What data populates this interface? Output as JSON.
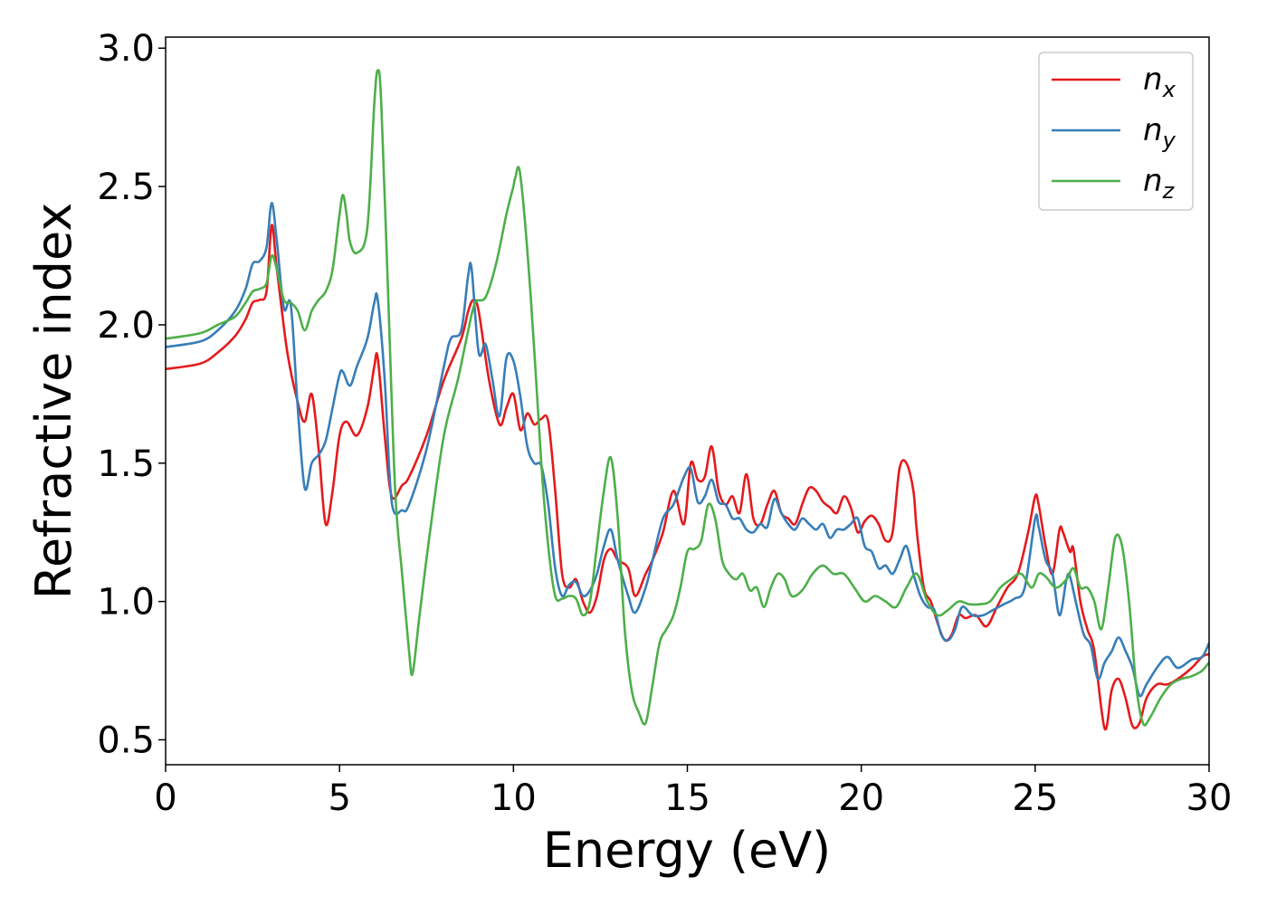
{
  "chart_data": {
    "type": "line",
    "title": "",
    "xlabel": "Energy (eV)",
    "ylabel": "Refractive index",
    "xlim": [
      0,
      30
    ],
    "ylim": [
      0.41,
      3.04
    ],
    "xticks": [
      0,
      5,
      10,
      15,
      20,
      25,
      30
    ],
    "xtick_labels": [
      "0",
      "5",
      "10",
      "15",
      "20",
      "25",
      "30"
    ],
    "yticks": [
      0.5,
      1.0,
      1.5,
      2.0,
      2.5,
      3.0
    ],
    "ytick_labels": [
      "0.5",
      "1.0",
      "1.5",
      "2.0",
      "2.5",
      "3.0"
    ],
    "grid": false,
    "legend_position": "top-right",
    "series": [
      {
        "name": "n_x",
        "label_main": "n",
        "label_sub": "x",
        "color": "#e41a1c",
        "x": [
          0,
          1,
          1.5,
          2,
          2.3,
          2.5,
          2.7,
          2.9,
          3.05,
          3.2,
          3.5,
          3.8,
          4.0,
          4.2,
          4.4,
          4.6,
          4.8,
          5.0,
          5.2,
          5.5,
          5.8,
          6.0,
          6.1,
          6.3,
          6.5,
          6.8,
          7.0,
          7.5,
          8.0,
          8.5,
          8.7,
          8.85,
          9.0,
          9.3,
          9.6,
          9.8,
          10.0,
          10.2,
          10.4,
          10.6,
          10.8,
          11.0,
          11.2,
          11.4,
          11.6,
          11.8,
          12.0,
          12.2,
          12.4,
          12.6,
          12.8,
          13.0,
          13.3,
          13.5,
          13.8,
          14.0,
          14.3,
          14.6,
          14.9,
          15.1,
          15.3,
          15.5,
          15.7,
          15.9,
          16.1,
          16.3,
          16.5,
          16.7,
          16.9,
          17.1,
          17.3,
          17.5,
          17.7,
          17.9,
          18.1,
          18.3,
          18.5,
          18.7,
          18.9,
          19.1,
          19.3,
          19.5,
          19.7,
          19.9,
          20.1,
          20.3,
          20.5,
          20.7,
          20.9,
          21.1,
          21.3,
          21.5,
          21.6,
          21.8,
          22.0,
          22.2,
          22.4,
          22.6,
          22.8,
          23.0,
          23.3,
          23.6,
          23.9,
          24.2,
          24.5,
          24.8,
          25.0,
          25.1,
          25.3,
          25.5,
          25.7,
          25.8,
          26.0,
          26.1,
          26.3,
          26.5,
          26.7,
          27.0,
          27.2,
          27.4,
          27.6,
          27.8,
          28.0,
          28.2,
          28.5,
          28.8,
          29.1,
          29.5,
          29.8,
          30.0
        ],
        "y": [
          1.84,
          1.86,
          1.9,
          1.96,
          2.02,
          2.08,
          2.09,
          2.12,
          2.36,
          2.2,
          1.9,
          1.72,
          1.65,
          1.75,
          1.55,
          1.28,
          1.4,
          1.6,
          1.65,
          1.6,
          1.7,
          1.85,
          1.88,
          1.6,
          1.38,
          1.42,
          1.45,
          1.6,
          1.8,
          1.95,
          2.05,
          2.09,
          2.05,
          1.8,
          1.64,
          1.7,
          1.75,
          1.62,
          1.68,
          1.64,
          1.66,
          1.65,
          1.4,
          1.1,
          1.05,
          1.08,
          1.0,
          0.96,
          1.02,
          1.15,
          1.19,
          1.15,
          1.12,
          1.02,
          1.1,
          1.15,
          1.25,
          1.4,
          1.28,
          1.5,
          1.44,
          1.45,
          1.56,
          1.4,
          1.35,
          1.38,
          1.32,
          1.46,
          1.3,
          1.28,
          1.35,
          1.4,
          1.32,
          1.3,
          1.28,
          1.35,
          1.41,
          1.4,
          1.36,
          1.34,
          1.32,
          1.38,
          1.34,
          1.25,
          1.29,
          1.31,
          1.28,
          1.22,
          1.25,
          1.48,
          1.5,
          1.4,
          1.25,
          1.05,
          1.0,
          0.92,
          0.86,
          0.88,
          0.95,
          0.94,
          0.95,
          0.91,
          0.98,
          1.05,
          1.1,
          1.25,
          1.38,
          1.35,
          1.2,
          1.1,
          1.26,
          1.25,
          1.18,
          1.19,
          1.0,
          0.9,
          0.82,
          0.54,
          0.68,
          0.72,
          0.65,
          0.55,
          0.56,
          0.65,
          0.7,
          0.7,
          0.72,
          0.76,
          0.8,
          0.81
        ]
      },
      {
        "name": "n_y",
        "label_main": "n",
        "label_sub": "y",
        "color": "#377eb8",
        "x": [
          0,
          1,
          1.5,
          2,
          2.3,
          2.5,
          2.7,
          2.9,
          3.05,
          3.2,
          3.4,
          3.6,
          3.8,
          4.0,
          4.2,
          4.4,
          4.6,
          4.8,
          5.0,
          5.1,
          5.3,
          5.5,
          5.8,
          6.0,
          6.1,
          6.3,
          6.5,
          6.8,
          7.0,
          7.5,
          8.0,
          8.2,
          8.5,
          8.7,
          8.8,
          9.0,
          9.2,
          9.4,
          9.6,
          9.8,
          10.0,
          10.2,
          10.4,
          10.6,
          10.8,
          11.0,
          11.2,
          11.4,
          11.6,
          11.8,
          12.0,
          12.2,
          12.4,
          12.6,
          12.8,
          13.0,
          13.3,
          13.5,
          13.8,
          14.0,
          14.3,
          14.6,
          14.9,
          15.1,
          15.3,
          15.5,
          15.7,
          15.9,
          16.1,
          16.3,
          16.5,
          16.7,
          16.9,
          17.1,
          17.3,
          17.5,
          17.7,
          17.9,
          18.1,
          18.3,
          18.5,
          18.7,
          18.9,
          19.1,
          19.3,
          19.5,
          19.7,
          19.9,
          20.1,
          20.3,
          20.5,
          20.7,
          20.9,
          21.1,
          21.3,
          21.5,
          21.7,
          21.9,
          22.1,
          22.3,
          22.5,
          22.7,
          22.9,
          23.2,
          23.5,
          23.8,
          24.1,
          24.4,
          24.7,
          25.0,
          25.1,
          25.3,
          25.5,
          25.7,
          25.9,
          26.0,
          26.2,
          26.4,
          26.6,
          26.8,
          27.0,
          27.2,
          27.4,
          27.6,
          27.8,
          28.0,
          28.2,
          28.5,
          28.8,
          29.1,
          29.5,
          29.8,
          30.0
        ],
        "y": [
          1.92,
          1.94,
          1.98,
          2.05,
          2.13,
          2.22,
          2.23,
          2.28,
          2.44,
          2.3,
          2.06,
          2.07,
          1.7,
          1.41,
          1.5,
          1.53,
          1.58,
          1.7,
          1.82,
          1.83,
          1.78,
          1.85,
          1.95,
          2.08,
          2.09,
          1.8,
          1.36,
          1.33,
          1.35,
          1.55,
          1.85,
          1.95,
          1.98,
          2.18,
          2.2,
          1.9,
          1.93,
          1.8,
          1.67,
          1.88,
          1.87,
          1.74,
          1.56,
          1.5,
          1.49,
          1.35,
          1.12,
          1.02,
          1.06,
          1.07,
          1.02,
          1.04,
          1.1,
          1.2,
          1.26,
          1.15,
          1.02,
          0.96,
          1.05,
          1.15,
          1.3,
          1.35,
          1.45,
          1.48,
          1.36,
          1.38,
          1.44,
          1.36,
          1.35,
          1.3,
          1.3,
          1.26,
          1.25,
          1.28,
          1.27,
          1.37,
          1.32,
          1.28,
          1.26,
          1.3,
          1.28,
          1.26,
          1.28,
          1.23,
          1.26,
          1.26,
          1.28,
          1.3,
          1.2,
          1.18,
          1.12,
          1.13,
          1.1,
          1.15,
          1.2,
          1.1,
          1.02,
          0.98,
          0.97,
          0.88,
          0.86,
          0.9,
          0.98,
          0.95,
          0.95,
          0.97,
          0.99,
          1.01,
          1.05,
          1.3,
          1.27,
          1.15,
          1.1,
          0.95,
          1.08,
          1.09,
          0.98,
          0.88,
          0.84,
          0.72,
          0.78,
          0.82,
          0.87,
          0.82,
          0.76,
          0.66,
          0.7,
          0.76,
          0.8,
          0.76,
          0.79,
          0.8,
          0.85
        ]
      },
      {
        "name": "n_z",
        "label_main": "n",
        "label_sub": "z",
        "color": "#4daf4a",
        "x": [
          0,
          1,
          1.5,
          2,
          2.3,
          2.5,
          2.7,
          2.9,
          3.05,
          3.2,
          3.4,
          3.6,
          3.8,
          4.0,
          4.2,
          4.4,
          4.6,
          4.8,
          5.0,
          5.1,
          5.2,
          5.3,
          5.5,
          5.8,
          6.0,
          6.1,
          6.2,
          6.4,
          6.6,
          6.8,
          7.0,
          7.1,
          7.3,
          7.6,
          8.0,
          8.4,
          8.7,
          8.9,
          9.2,
          9.5,
          9.8,
          10.0,
          10.05,
          10.2,
          10.5,
          10.8,
          11.0,
          11.2,
          11.4,
          11.6,
          11.8,
          12.0,
          12.2,
          12.4,
          12.6,
          12.8,
          13.0,
          13.2,
          13.4,
          13.6,
          13.8,
          14.0,
          14.2,
          14.4,
          14.6,
          14.8,
          15.0,
          15.2,
          15.4,
          15.6,
          15.8,
          16.0,
          16.2,
          16.4,
          16.6,
          16.8,
          17.0,
          17.2,
          17.4,
          17.6,
          17.8,
          18.0,
          18.3,
          18.6,
          18.9,
          19.2,
          19.5,
          19.8,
          20.1,
          20.4,
          20.7,
          21.0,
          21.3,
          21.6,
          21.9,
          22.2,
          22.5,
          22.8,
          23.1,
          23.4,
          23.7,
          24.0,
          24.3,
          24.6,
          24.9,
          25.1,
          25.3,
          25.6,
          25.9,
          26.1,
          26.3,
          26.5,
          26.7,
          26.9,
          27.1,
          27.3,
          27.5,
          27.7,
          27.9,
          28.1,
          28.3,
          28.6,
          28.9,
          29.2,
          29.5,
          29.8,
          30.0
        ],
        "y": [
          1.95,
          1.97,
          2.0,
          2.03,
          2.08,
          2.12,
          2.13,
          2.15,
          2.25,
          2.2,
          2.09,
          2.08,
          2.05,
          1.98,
          2.05,
          2.09,
          2.12,
          2.2,
          2.4,
          2.47,
          2.4,
          2.3,
          2.26,
          2.35,
          2.8,
          2.92,
          2.8,
          2.1,
          1.4,
          1.1,
          0.82,
          0.74,
          0.95,
          1.25,
          1.6,
          1.8,
          1.98,
          2.08,
          2.1,
          2.22,
          2.4,
          2.5,
          2.53,
          2.54,
          2.1,
          1.5,
          1.2,
          1.02,
          1.01,
          1.02,
          1.01,
          0.95,
          1.0,
          1.2,
          1.4,
          1.52,
          1.3,
          0.9,
          0.68,
          0.6,
          0.56,
          0.7,
          0.85,
          0.9,
          0.95,
          1.05,
          1.18,
          1.19,
          1.22,
          1.35,
          1.3,
          1.15,
          1.1,
          1.08,
          1.1,
          1.04,
          1.05,
          0.98,
          1.05,
          1.1,
          1.08,
          1.02,
          1.04,
          1.1,
          1.13,
          1.1,
          1.1,
          1.05,
          1.0,
          1.02,
          1.0,
          0.98,
          1.05,
          1.1,
          1.0,
          0.95,
          0.97,
          1.0,
          0.99,
          0.99,
          1.0,
          1.05,
          1.08,
          1.1,
          1.05,
          1.1,
          1.09,
          1.05,
          1.08,
          1.12,
          1.05,
          1.05,
          1.0,
          0.9,
          1.05,
          1.23,
          1.2,
          1.0,
          0.7,
          0.56,
          0.58,
          0.65,
          0.7,
          0.72,
          0.73,
          0.75,
          0.78
        ]
      }
    ]
  }
}
